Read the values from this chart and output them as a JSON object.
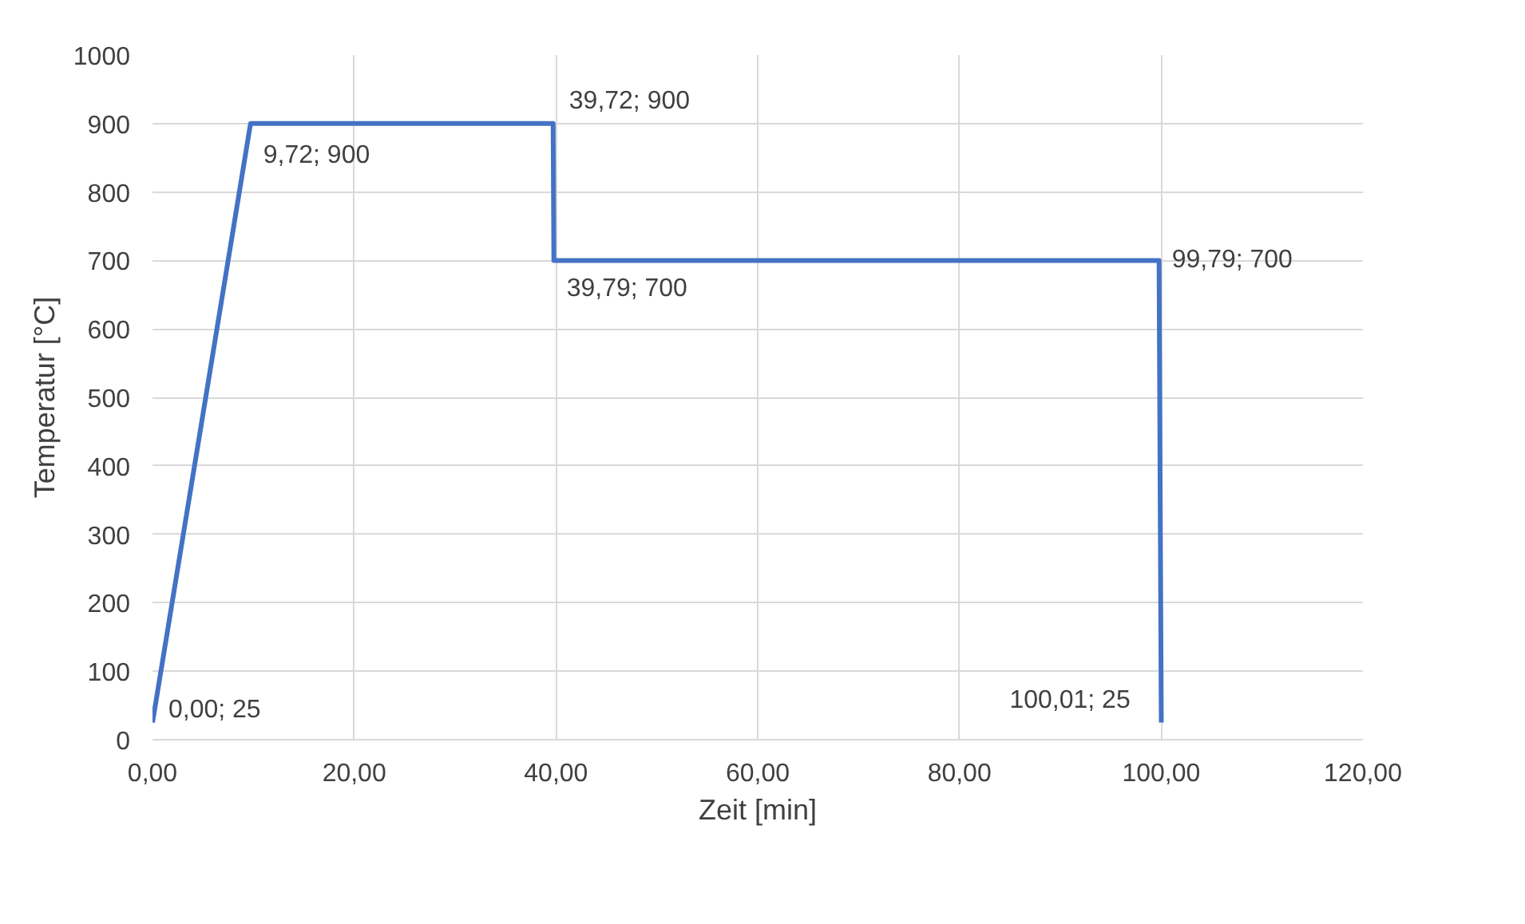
{
  "chart_data": {
    "type": "line",
    "xlabel": "Zeit [min]",
    "ylabel": "Temperatur [°C]",
    "series": [
      {
        "color": "#4472c4",
        "x": [
          0.0,
          9.72,
          39.72,
          39.79,
          99.79,
          100.01
        ],
        "values": [
          25,
          900,
          900,
          700,
          700,
          25
        ],
        "value_labels": [
          "0,00; 25",
          "9,72; 900",
          "39,72; 900",
          "39,79; 700",
          "99,79; 700",
          "100,01; 25"
        ]
      }
    ],
    "xlim": [
      0,
      120
    ],
    "ylim": [
      0,
      1000
    ],
    "xticks": [
      {
        "value": 0,
        "label": "0,00"
      },
      {
        "value": 20,
        "label": "20,00"
      },
      {
        "value": 40,
        "label": "40,00"
      },
      {
        "value": 60,
        "label": "60,00"
      },
      {
        "value": 80,
        "label": "80,00"
      },
      {
        "value": 100,
        "label": "100,00"
      },
      {
        "value": 120,
        "label": "120,00"
      }
    ],
    "yticks": [
      0,
      100,
      200,
      300,
      400,
      500,
      600,
      700,
      800,
      900,
      1000
    ],
    "grid": true,
    "marker": "none",
    "line_style": "solid"
  }
}
